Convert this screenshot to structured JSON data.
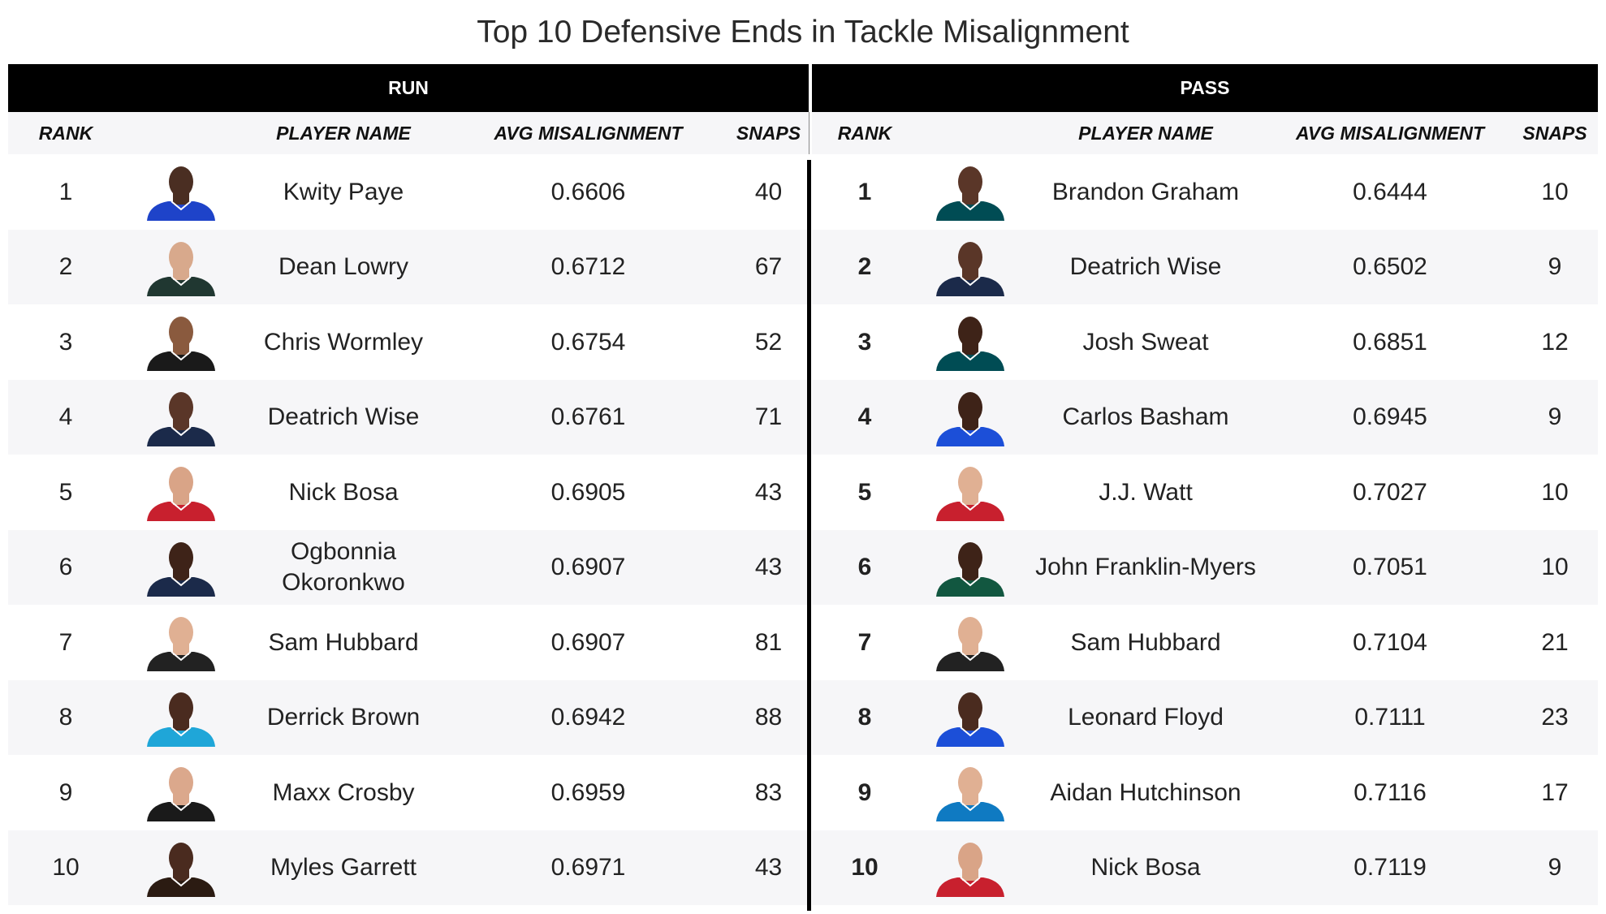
{
  "chart_data": {
    "type": "table",
    "title": "Top 10 Defensive Ends in Tackle Misalignment",
    "columns": [
      "RANK",
      "",
      "PLAYER NAME",
      "AVG MISALIGNMENT",
      "SNAPS"
    ],
    "groups": [
      {
        "label": "RUN",
        "rows": [
          {
            "rank": "1",
            "player": "Kwity Paye",
            "avg": "0.6606",
            "snaps": "40",
            "team_color": "#1e43c9",
            "skin": "#4a2e22"
          },
          {
            "rank": "2",
            "player": "Dean Lowry",
            "avg": "0.6712",
            "snaps": "67",
            "team_color": "#203731",
            "skin": "#d8a98c"
          },
          {
            "rank": "3",
            "player": "Chris Wormley",
            "avg": "0.6754",
            "snaps": "52",
            "team_color": "#1a1a1a",
            "skin": "#8a5a3e"
          },
          {
            "rank": "4",
            "player": "Deatrich Wise",
            "avg": "0.6761",
            "snaps": "71",
            "team_color": "#1b2a4a",
            "skin": "#5a3628"
          },
          {
            "rank": "5",
            "player": "Nick Bosa",
            "avg": "0.6905",
            "snaps": "43",
            "team_color": "#c8202e",
            "skin": "#d9a487"
          },
          {
            "rank": "6",
            "player": "Ogbonnia Okoronkwo",
            "avg": "0.6907",
            "snaps": "43",
            "team_color": "#1b2a4a",
            "skin": "#3e2318"
          },
          {
            "rank": "7",
            "player": "Sam Hubbard",
            "avg": "0.6907",
            "snaps": "81",
            "team_color": "#222222",
            "skin": "#e0b093"
          },
          {
            "rank": "8",
            "player": "Derrick Brown",
            "avg": "0.6942",
            "snaps": "88",
            "team_color": "#1fa6d8",
            "skin": "#4a2b1f"
          },
          {
            "rank": "9",
            "player": "Maxx Crosby",
            "avg": "0.6959",
            "snaps": "83",
            "team_color": "#1a1a1a",
            "skin": "#dba88c"
          },
          {
            "rank": "10",
            "player": "Myles Garrett",
            "avg": "0.6971",
            "snaps": "43",
            "team_color": "#2b1b12",
            "skin": "#4a2b1f"
          }
        ]
      },
      {
        "label": "PASS",
        "rows": [
          {
            "rank": "1",
            "player": "Brandon Graham",
            "avg": "0.6444",
            "snaps": "10",
            "team_color": "#004c54",
            "skin": "#5a3628"
          },
          {
            "rank": "2",
            "player": "Deatrich Wise",
            "avg": "0.6502",
            "snaps": "9",
            "team_color": "#1b2a4a",
            "skin": "#5a3628"
          },
          {
            "rank": "3",
            "player": "Josh Sweat",
            "avg": "0.6851",
            "snaps": "12",
            "team_color": "#004c54",
            "skin": "#3e2318"
          },
          {
            "rank": "4",
            "player": "Carlos Basham",
            "avg": "0.6945",
            "snaps": "9",
            "team_color": "#1c4fd8",
            "skin": "#3e2318"
          },
          {
            "rank": "5",
            "player": "J.J. Watt",
            "avg": "0.7027",
            "snaps": "10",
            "team_color": "#c8202e",
            "skin": "#e0b093"
          },
          {
            "rank": "6",
            "player": "John Franklin-Myers",
            "avg": "0.7051",
            "snaps": "10",
            "team_color": "#125740",
            "skin": "#3e2318"
          },
          {
            "rank": "7",
            "player": "Sam Hubbard",
            "avg": "0.7104",
            "snaps": "21",
            "team_color": "#222222",
            "skin": "#e0b093"
          },
          {
            "rank": "8",
            "player": "Leonard Floyd",
            "avg": "0.7111",
            "snaps": "23",
            "team_color": "#1c4fd8",
            "skin": "#4a2b1f"
          },
          {
            "rank": "9",
            "player": "Aidan Hutchinson",
            "avg": "0.7116",
            "snaps": "17",
            "team_color": "#0f7ac2",
            "skin": "#e0b093"
          },
          {
            "rank": "10",
            "player": "Nick Bosa",
            "avg": "0.7119",
            "snaps": "9",
            "team_color": "#c8202e",
            "skin": "#d9a487"
          }
        ]
      }
    ]
  }
}
